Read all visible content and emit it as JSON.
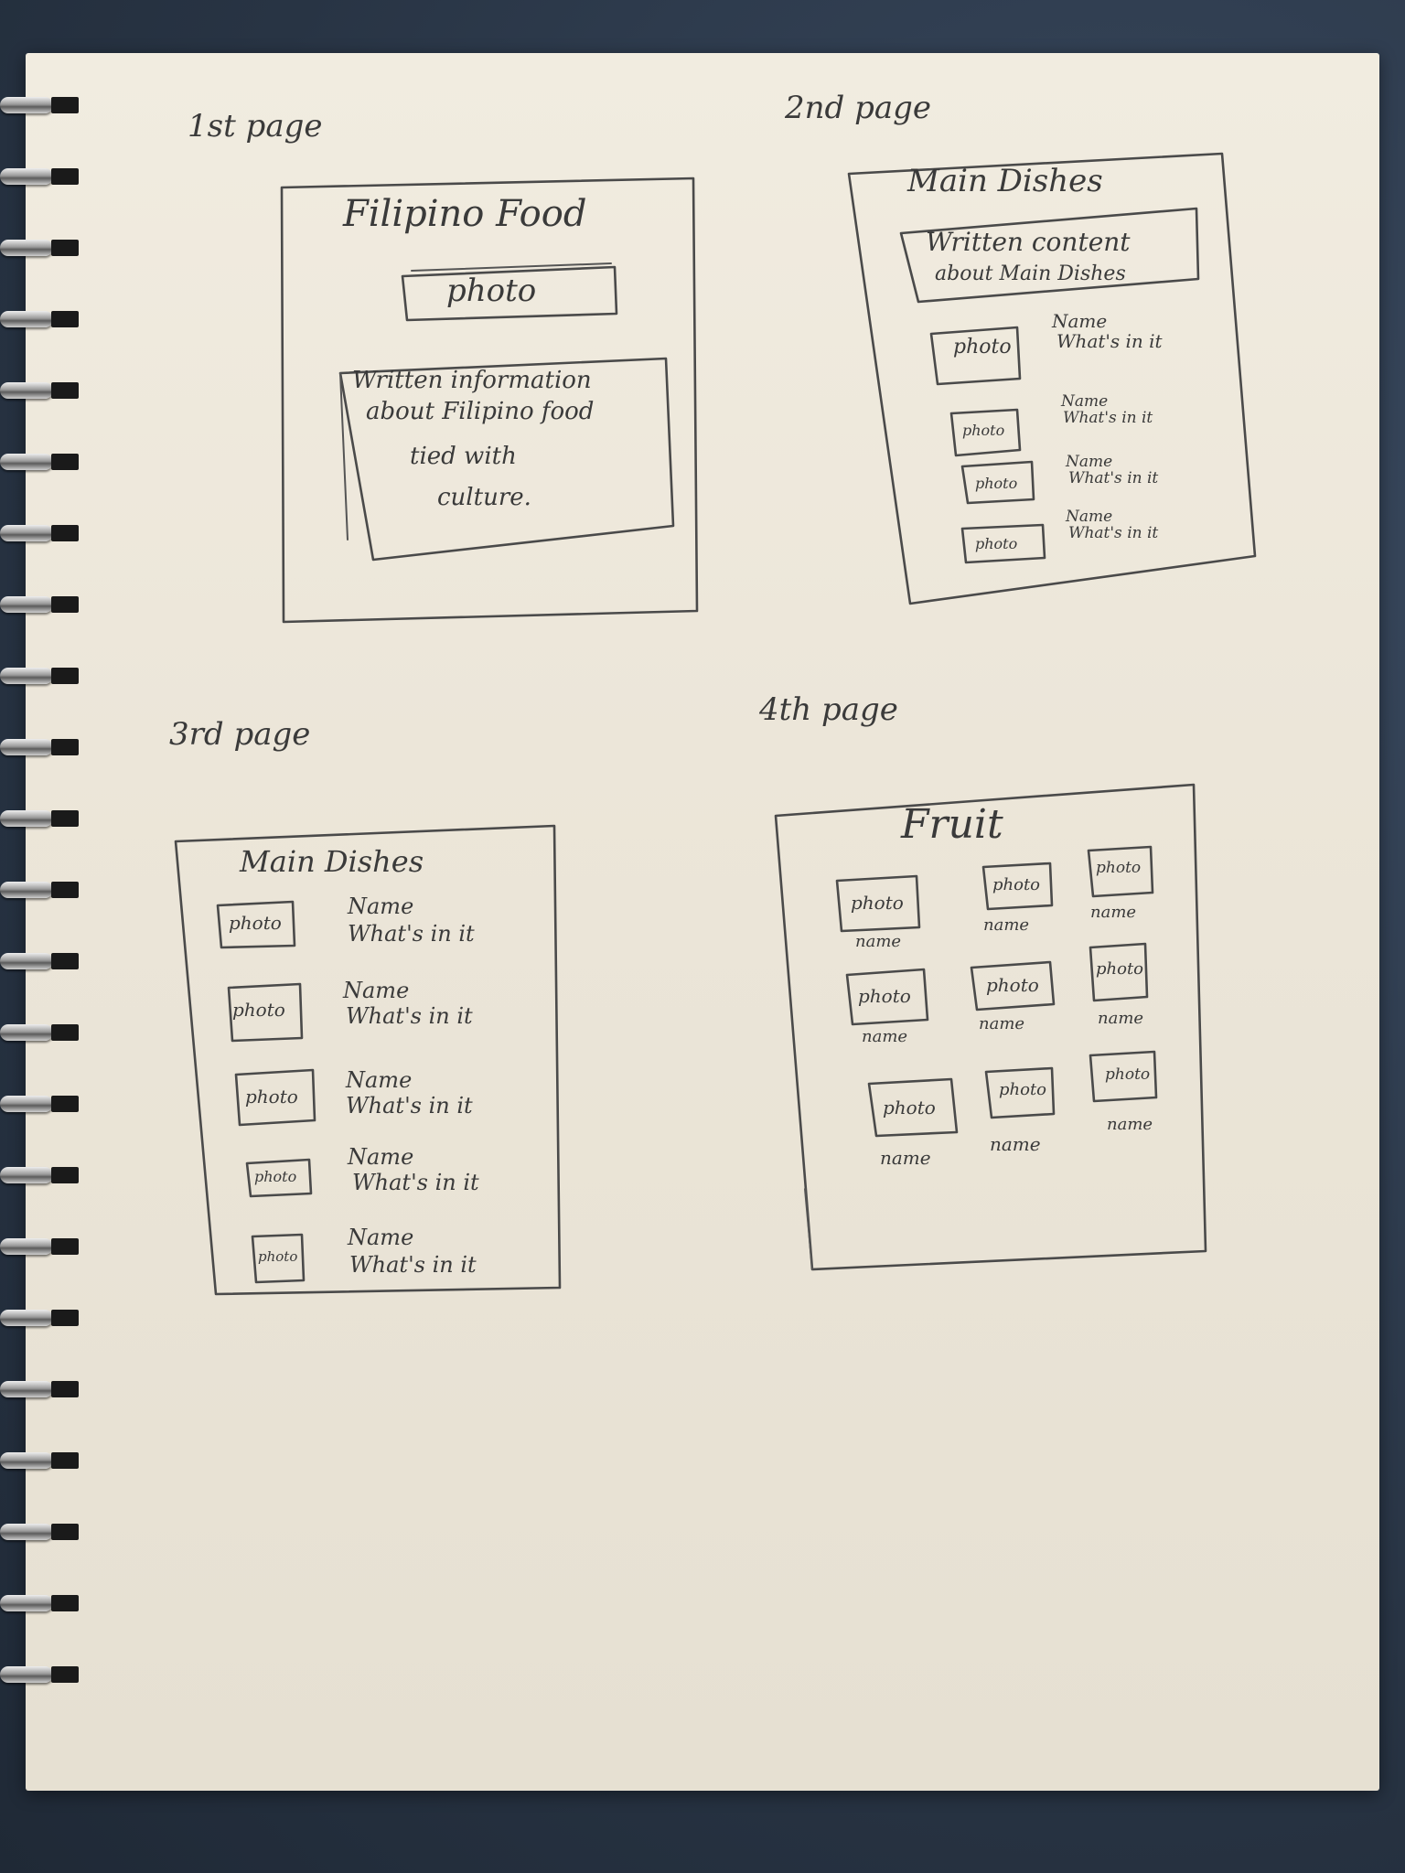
{
  "labels": {
    "page1": "1st page",
    "page2": "2nd page",
    "page3": "3rd page",
    "page4": "4th page"
  },
  "page1": {
    "title": "Filipino Food",
    "photo": "photo",
    "text_lines": [
      "Written information",
      "about Filipino food",
      "tied with",
      "culture."
    ]
  },
  "page2": {
    "title": "Main Dishes",
    "content_lines": [
      "Written content",
      "about Main Dishes"
    ],
    "items": [
      {
        "photo": "photo",
        "name": "Name",
        "desc": "What's in it"
      },
      {
        "photo": "photo",
        "name": "Name",
        "desc": "What's in it"
      },
      {
        "photo": "photo",
        "name": "Name",
        "desc": "What's in it"
      },
      {
        "photo": "photo",
        "name": "Name",
        "desc": "What's in it"
      }
    ]
  },
  "page3": {
    "title": "Main Dishes",
    "items": [
      {
        "photo": "photo",
        "name": "Name",
        "desc": "What's in it"
      },
      {
        "photo": "photo",
        "name": "Name",
        "desc": "What's in it"
      },
      {
        "photo": "photo",
        "name": "Name",
        "desc": "What's in it"
      },
      {
        "photo": "photo",
        "name": "Name",
        "desc": "What's in it"
      },
      {
        "photo": "photo",
        "name": "Name",
        "desc": "What's in it"
      }
    ]
  },
  "page4": {
    "title": "Fruit",
    "items": [
      {
        "photo": "photo",
        "name": "name"
      },
      {
        "photo": "photo",
        "name": "name"
      },
      {
        "photo": "photo",
        "name": "name"
      },
      {
        "photo": "photo",
        "name": "name"
      },
      {
        "photo": "photo",
        "name": "name"
      },
      {
        "photo": "photo",
        "name": "name"
      },
      {
        "photo": "photo",
        "name": "name"
      },
      {
        "photo": "photo",
        "name": "name"
      },
      {
        "photo": "photo",
        "name": "name"
      }
    ]
  }
}
